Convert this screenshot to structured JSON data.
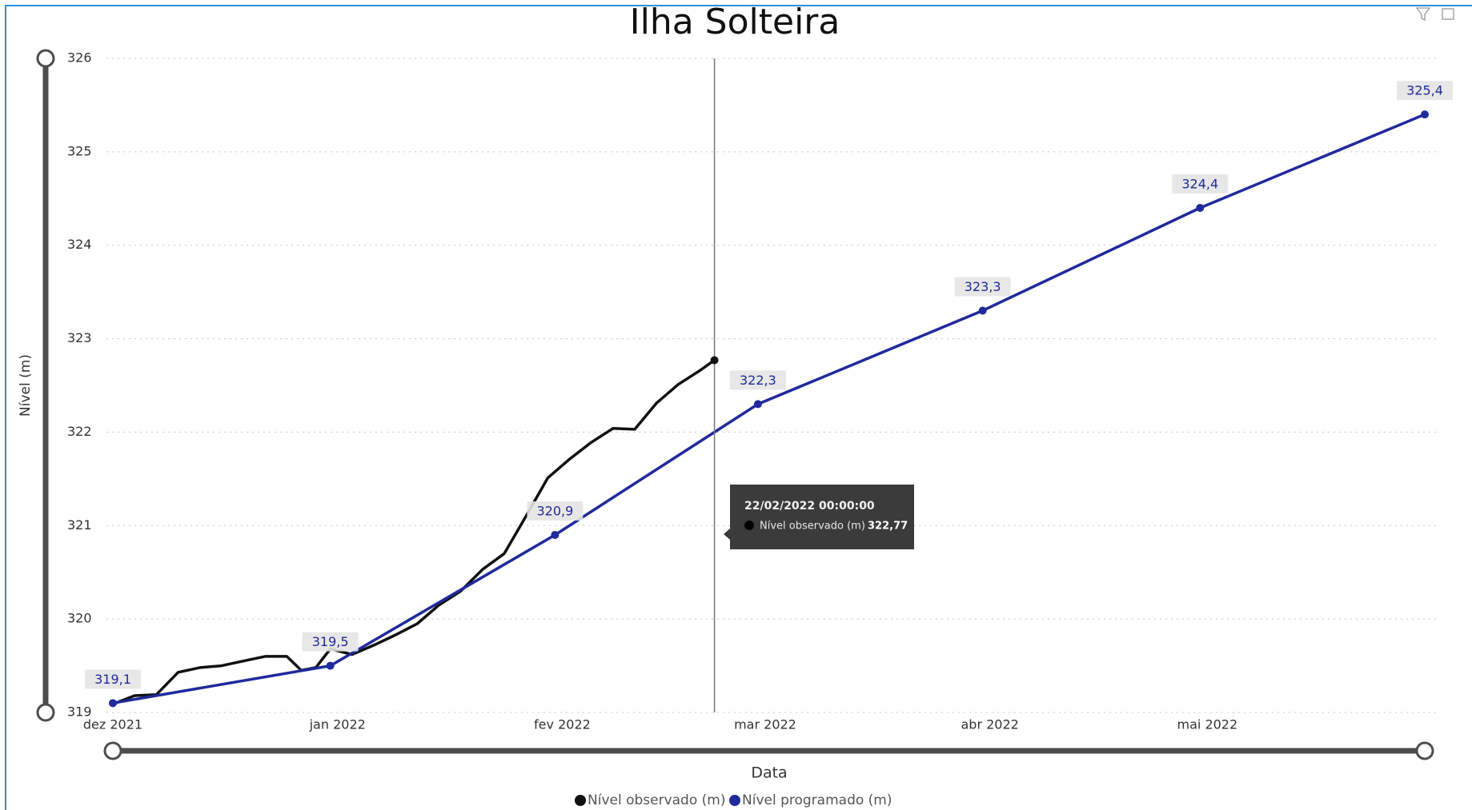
{
  "chart_data": {
    "type": "line",
    "title": "Ilha Solteira",
    "x_label": "Data",
    "y_label": "Nível (m)",
    "xlim": [
      "2021-12-01",
      "2022-05-31"
    ],
    "xticks": [
      {
        "value": "2021-12-01",
        "label": "dez 2021"
      },
      {
        "value": "2022-01-01",
        "label": "jan 2022"
      },
      {
        "value": "2022-02-01",
        "label": "fev 2022"
      },
      {
        "value": "2022-03-01",
        "label": "mar 2022"
      },
      {
        "value": "2022-04-01",
        "label": "abr 2022"
      },
      {
        "value": "2022-05-01",
        "label": "mai 2022"
      }
    ],
    "ylim": [
      319,
      326
    ],
    "yticks": [
      319,
      320,
      321,
      322,
      323,
      324,
      325,
      326
    ],
    "grid": true,
    "legend": "bottom",
    "series": [
      {
        "name": "Nível observado (m)",
        "color": "#111111",
        "x": [
          "2021-12-01",
          "2021-12-04",
          "2021-12-07",
          "2021-12-10",
          "2021-12-13",
          "2021-12-16",
          "2021-12-19",
          "2021-12-22",
          "2021-12-25",
          "2021-12-27",
          "2021-12-29",
          "2021-12-31",
          "2022-01-03",
          "2022-01-06",
          "2022-01-09",
          "2022-01-12",
          "2022-01-15",
          "2022-01-18",
          "2022-01-21",
          "2022-01-24",
          "2022-01-27",
          "2022-01-30",
          "2022-02-02",
          "2022-02-05",
          "2022-02-08",
          "2022-02-11",
          "2022-02-14",
          "2022-02-17",
          "2022-02-20",
          "2022-02-22"
        ],
        "values": [
          319.09,
          319.18,
          319.19,
          319.43,
          319.48,
          319.5,
          319.55,
          319.6,
          319.6,
          319.45,
          319.48,
          319.68,
          319.62,
          319.72,
          319.83,
          319.95,
          320.15,
          320.3,
          320.53,
          320.7,
          321.1,
          321.51,
          321.71,
          321.89,
          322.04,
          322.03,
          322.31,
          322.51,
          322.66,
          322.77
        ]
      },
      {
        "name": "Nível programado (m)",
        "color": "#1f2a9c",
        "x": [
          "2021-12-01",
          "2021-12-31",
          "2022-01-31",
          "2022-02-28",
          "2022-03-31",
          "2022-04-30",
          "2022-05-31"
        ],
        "values": [
          319.1,
          319.5,
          320.9,
          322.3,
          323.3,
          324.4,
          325.4
        ],
        "value_labels": [
          "319,1",
          "319,5",
          "320,9",
          "322,3",
          "323,3",
          "324,4",
          "325,4"
        ]
      }
    ],
    "tooltip": {
      "date": "22/02/2022 00:00:00",
      "value_label": "322,77"
    }
  }
}
